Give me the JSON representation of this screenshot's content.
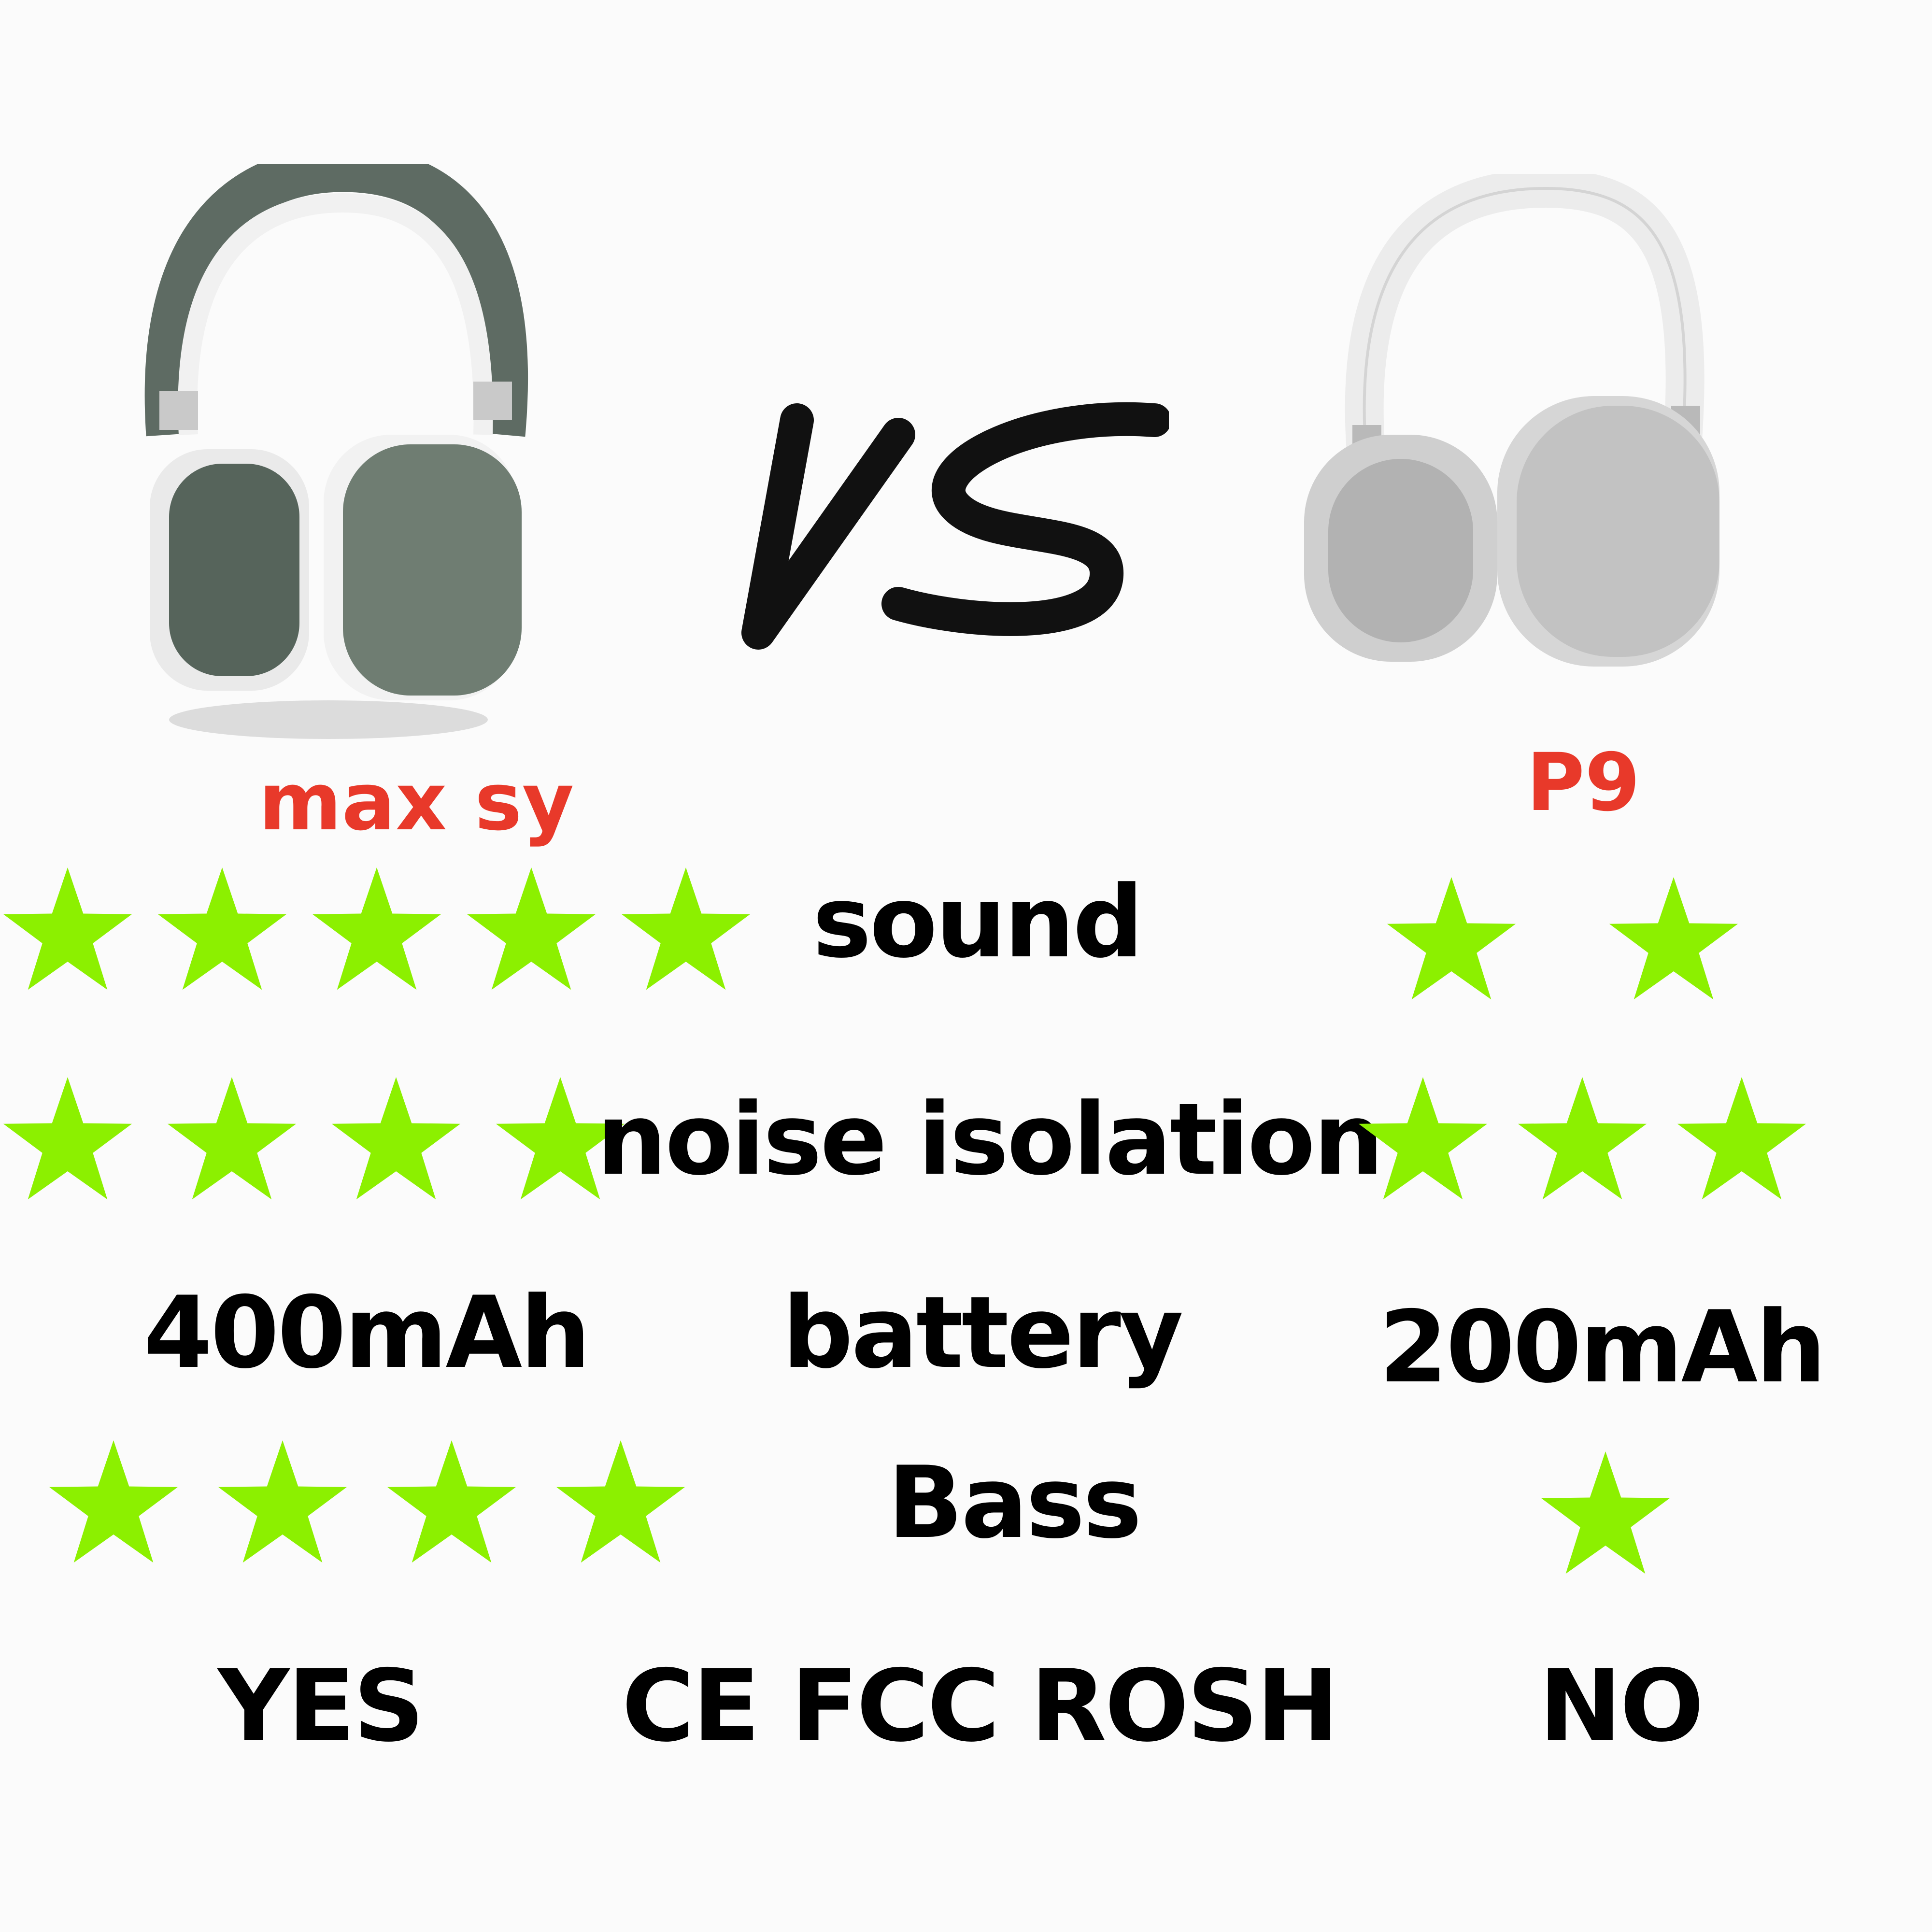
{
  "vs_text": "VS",
  "products": [
    {
      "name": "max sy",
      "image": "green-white-over-ear-headphones"
    },
    {
      "name": "P9",
      "image": "silver-white-over-ear-headphones"
    }
  ],
  "rows": [
    {
      "label": "sound",
      "left_stars": 5,
      "right_stars": 2
    },
    {
      "label": "noise isolation",
      "left_stars": 4,
      "right_stars": 3
    },
    {
      "label": "battery",
      "left_value": "400mAh",
      "right_value": "200mAh"
    },
    {
      "label": "Bass",
      "left_stars": 4,
      "right_stars": 1
    },
    {
      "label": "CE FCC ROSH",
      "left_value": "YES",
      "right_value": "NO"
    }
  ],
  "colors": {
    "star": "#8cf000",
    "product_name": "#e8392a",
    "text": "#000000"
  }
}
